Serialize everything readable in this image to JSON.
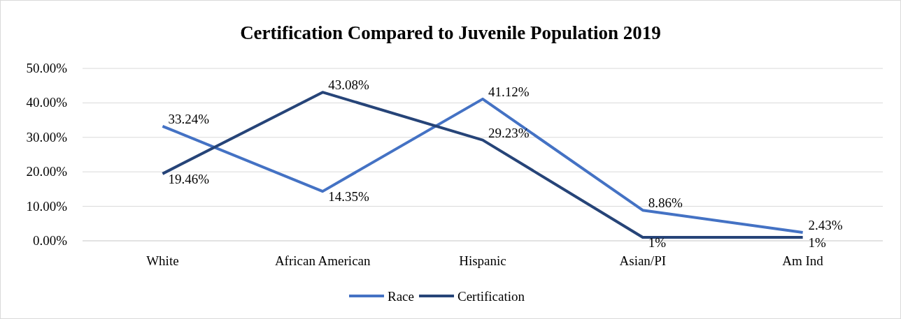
{
  "chart_data": {
    "type": "line",
    "title": "Certification Compared to Juvenile Population 2019",
    "categories": [
      "White",
      "African American",
      "Hispanic",
      "Asian/PI",
      "Am Ind"
    ],
    "series": [
      {
        "name": "Race",
        "color": "#4472c4",
        "values": [
          33.24,
          14.35,
          41.12,
          8.86,
          2.43
        ],
        "value_labels": [
          "33.24%",
          "14.35%",
          "41.12%",
          "8.86%",
          "2.43%"
        ]
      },
      {
        "name": "Certification",
        "color": "#264478",
        "values": [
          19.46,
          43.08,
          29.23,
          1,
          1
        ],
        "value_labels": [
          "19.46%",
          "43.08%",
          "29.23%",
          "1%",
          "1%"
        ]
      }
    ],
    "ylim": [
      0,
      50
    ],
    "yticks": [
      {
        "value": 0,
        "label": "0.00%"
      },
      {
        "value": 10,
        "label": "10.00%"
      },
      {
        "value": 20,
        "label": "20.00%"
      },
      {
        "value": 30,
        "label": "30.00%"
      },
      {
        "value": 40,
        "label": "40.00%"
      },
      {
        "value": 50,
        "label": "50.00%"
      }
    ],
    "grid": "y",
    "legend": "bottom",
    "marker": "none",
    "line_style": "solid"
  }
}
